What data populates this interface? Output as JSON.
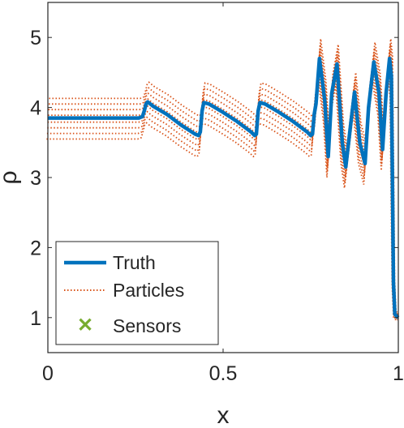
{
  "chart_data": {
    "type": "line",
    "title": "",
    "xlabel": "x",
    "ylabel": "ρ",
    "xlim": [
      0,
      1
    ],
    "ylim": [
      0.5,
      5.5
    ],
    "xticks": [
      0,
      0.5,
      1
    ],
    "xtick_labels": [
      "0",
      "0.5",
      "1"
    ],
    "yticks": [
      1,
      2,
      3,
      4,
      5
    ],
    "ytick_labels": [
      "1",
      "2",
      "3",
      "4",
      "5"
    ],
    "grid": false,
    "legend": {
      "position": "bottom-left",
      "entries": [
        "Truth",
        "Particles",
        "Sensors"
      ]
    },
    "colors": {
      "truth": "#0072BD",
      "particles": "#D95319",
      "sensors": "#77AC30"
    },
    "series": [
      {
        "name": "Truth",
        "style": "solid",
        "x": [
          0,
          0.26,
          0.27,
          0.275,
          0.28,
          0.285,
          0.3,
          0.34,
          0.38,
          0.42,
          0.43,
          0.435,
          0.44,
          0.445,
          0.46,
          0.5,
          0.54,
          0.58,
          0.59,
          0.595,
          0.6,
          0.605,
          0.62,
          0.66,
          0.7,
          0.74,
          0.75,
          0.755,
          0.76,
          0.765,
          0.775,
          0.79,
          0.8,
          0.81,
          0.825,
          0.84,
          0.85,
          0.865,
          0.875,
          0.89,
          0.905,
          0.915,
          0.93,
          0.945,
          0.955,
          0.965,
          0.975,
          0.98,
          0.983,
          0.986,
          0.99,
          0.995,
          1.0
        ],
        "y": [
          3.85,
          3.85,
          3.87,
          3.95,
          4.05,
          4.08,
          4.02,
          3.9,
          3.75,
          3.62,
          3.6,
          3.65,
          3.95,
          4.07,
          4.05,
          3.93,
          3.8,
          3.65,
          3.6,
          3.62,
          3.95,
          4.07,
          4.05,
          3.93,
          3.8,
          3.65,
          3.6,
          3.62,
          3.9,
          4.05,
          4.7,
          4.1,
          3.3,
          4.2,
          4.62,
          3.5,
          3.15,
          3.8,
          4.22,
          3.5,
          3.2,
          4.0,
          4.65,
          4.2,
          3.4,
          4.2,
          4.7,
          4.45,
          3.0,
          1.5,
          1.05,
          1.02,
          1.0
        ]
      },
      {
        "name": "Particles",
        "style": "dotted",
        "members": 8,
        "offsets": [
          -0.3,
          -0.22,
          -0.14,
          -0.06,
          0.04,
          0.12,
          0.2,
          0.28
        ]
      },
      {
        "name": "Sensors",
        "style": "marker-x",
        "x": [],
        "y": []
      }
    ]
  }
}
